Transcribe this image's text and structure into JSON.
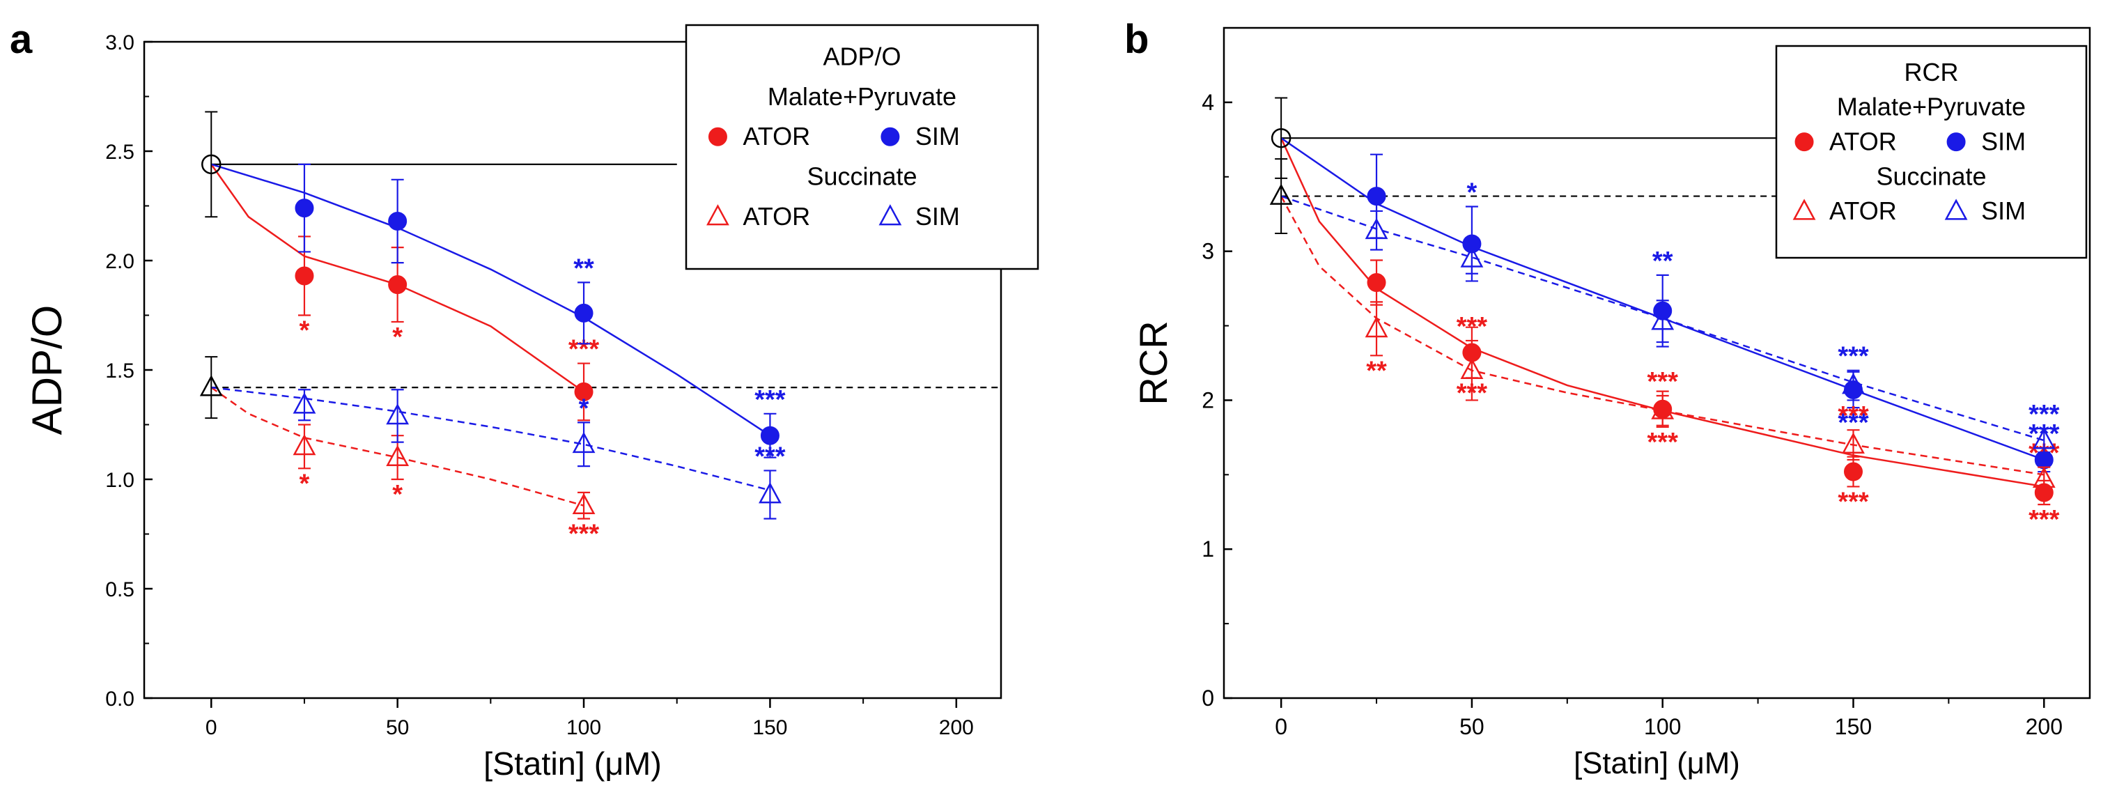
{
  "chart_data": [
    {
      "panel": "a",
      "type": "scatter",
      "ylabel": "ADP/O",
      "xlabel": "[Statin] (μM)",
      "xlim": [
        -18,
        212
      ],
      "ylim": [
        0,
        3.0
      ],
      "xticks": [
        0,
        50,
        100,
        150,
        200
      ],
      "xtick_labels": [
        "0",
        "50",
        "100",
        "150",
        "200"
      ],
      "yticks": [
        0,
        0.5,
        1.0,
        1.5,
        2.0,
        2.5,
        3.0
      ],
      "ytick_labels": [
        "0.0",
        "0.5",
        "1.0",
        "1.5",
        "2.0",
        "2.5",
        "3.0"
      ],
      "control": [
        {
          "name": "control-malate-pyruvate",
          "x": 0,
          "y": 2.44,
          "err": 0.24,
          "marker": "open-circle",
          "ref_line": "solid",
          "ref_to": 125
        },
        {
          "name": "control-succinate",
          "x": 0,
          "y": 1.42,
          "err": 0.14,
          "marker": "open-triangle",
          "ref_line": "dashed",
          "ref_to": 212
        }
      ],
      "series": [
        {
          "name": "ATOR",
          "substrate": "Malate+Pyruvate",
          "color": "#ee1c1c",
          "marker": "filled-circle",
          "line": "solid",
          "x": [
            25,
            50,
            100
          ],
          "y": [
            1.93,
            1.89,
            1.4
          ],
          "err": [
            0.18,
            0.17,
            0.13
          ],
          "sig": [
            "*",
            "*",
            "***"
          ],
          "sig_pos": [
            "below",
            "below",
            "above"
          ],
          "fit": [
            [
              0,
              2.44
            ],
            [
              10,
              2.2
            ],
            [
              25,
              2.02
            ],
            [
              50,
              1.89
            ],
            [
              75,
              1.7
            ],
            [
              100,
              1.4
            ]
          ]
        },
        {
          "name": "SIM",
          "substrate": "Malate+Pyruvate",
          "color": "#1a1ae6",
          "marker": "filled-circle",
          "line": "solid",
          "x": [
            25,
            50,
            100,
            150
          ],
          "y": [
            2.24,
            2.18,
            1.76,
            1.2
          ],
          "err": [
            0.2,
            0.19,
            0.14,
            0.1
          ],
          "sig": [
            "",
            "",
            "**",
            "***"
          ],
          "sig_pos": [
            "above",
            "above",
            "above",
            "above"
          ],
          "fit": [
            [
              0,
              2.44
            ],
            [
              25,
              2.31
            ],
            [
              50,
              2.15
            ],
            [
              75,
              1.96
            ],
            [
              100,
              1.74
            ],
            [
              125,
              1.48
            ],
            [
              150,
              1.2
            ]
          ]
        },
        {
          "name": "ATOR",
          "substrate": "Succinate",
          "color": "#ee1c1c",
          "marker": "open-triangle",
          "line": "dashed",
          "x": [
            25,
            50,
            100
          ],
          "y": [
            1.15,
            1.1,
            0.88
          ],
          "err": [
            0.1,
            0.1,
            0.06
          ],
          "sig": [
            "*",
            "*",
            "***"
          ],
          "sig_pos": [
            "below",
            "below",
            "below"
          ],
          "fit": [
            [
              0,
              1.42
            ],
            [
              10,
              1.3
            ],
            [
              25,
              1.19
            ],
            [
              50,
              1.1
            ],
            [
              75,
              1.0
            ],
            [
              100,
              0.88
            ]
          ]
        },
        {
          "name": "SIM",
          "substrate": "Succinate",
          "color": "#1a1ae6",
          "marker": "open-triangle",
          "line": "dashed",
          "x": [
            25,
            50,
            100,
            150
          ],
          "y": [
            1.34,
            1.29,
            1.16,
            0.93
          ],
          "err": [
            0.07,
            0.12,
            0.1,
            0.11
          ],
          "sig": [
            "",
            "",
            "*",
            "***"
          ],
          "sig_pos": [
            "above",
            "above",
            "above",
            "above"
          ],
          "fit": [
            [
              0,
              1.42
            ],
            [
              25,
              1.37
            ],
            [
              50,
              1.31
            ],
            [
              75,
              1.24
            ],
            [
              100,
              1.16
            ],
            [
              125,
              1.06
            ],
            [
              150,
              0.95
            ]
          ]
        }
      ],
      "legend": {
        "title": "ADP/O",
        "group1": "Malate+Pyruvate",
        "group2": "Succinate",
        "ator": "ATOR",
        "sim": "SIM",
        "placement": "top-right"
      }
    },
    {
      "panel": "b",
      "type": "scatter",
      "ylabel": "RCR",
      "xlabel": "[Statin] (μM)",
      "xlim": [
        -15,
        212
      ],
      "ylim": [
        0,
        4.5
      ],
      "xticks": [
        0,
        50,
        100,
        150,
        200
      ],
      "xtick_labels": [
        "0",
        "50",
        "100",
        "150",
        "200"
      ],
      "yticks": [
        0,
        1,
        2,
        3,
        4
      ],
      "ytick_labels": [
        "0",
        "1",
        "2",
        "3",
        "4"
      ],
      "control": [
        {
          "name": "control-malate-pyruvate",
          "x": 0,
          "y": 3.76,
          "err": 0.27,
          "marker": "open-circle",
          "ref_line": "solid",
          "ref_to": 130
        },
        {
          "name": "control-succinate",
          "x": 0,
          "y": 3.37,
          "err": 0.25,
          "marker": "open-triangle",
          "ref_line": "dashed",
          "ref_to": 130
        }
      ],
      "series": [
        {
          "name": "ATOR",
          "substrate": "Malate+Pyruvate",
          "color": "#ee1c1c",
          "marker": "filled-circle",
          "line": "solid",
          "x": [
            25,
            50,
            100,
            150,
            200
          ],
          "y": [
            2.79,
            2.32,
            1.94,
            1.52,
            1.38
          ],
          "err": [
            0.15,
            0.17,
            0.12,
            0.1,
            0.08
          ],
          "sig": [
            "",
            "***",
            "***",
            "***",
            "***"
          ],
          "sig_pos": [
            "below",
            "below",
            "below",
            "below",
            "below"
          ],
          "fit": [
            [
              0,
              3.76
            ],
            [
              10,
              3.2
            ],
            [
              25,
              2.75
            ],
            [
              50,
              2.35
            ],
            [
              75,
              2.1
            ],
            [
              100,
              1.93
            ],
            [
              150,
              1.63
            ],
            [
              200,
              1.42
            ]
          ]
        },
        {
          "name": "SIM",
          "substrate": "Malate+Pyruvate",
          "color": "#1a1ae6",
          "marker": "filled-circle",
          "line": "solid",
          "x": [
            25,
            50,
            100,
            150,
            200
          ],
          "y": [
            3.37,
            3.05,
            2.6,
            2.07,
            1.6
          ],
          "err": [
            0.28,
            0.25,
            0.24,
            0.12,
            0.08
          ],
          "sig": [
            "",
            "*",
            "**",
            "***",
            "***"
          ],
          "sig_pos": [
            "above",
            "above",
            "above",
            "below",
            "above"
          ],
          "fit": [
            [
              0,
              3.76
            ],
            [
              25,
              3.32
            ],
            [
              50,
              3.03
            ],
            [
              100,
              2.55
            ],
            [
              150,
              2.07
            ],
            [
              200,
              1.6
            ]
          ]
        },
        {
          "name": "ATOR",
          "substrate": "Succinate",
          "color": "#ee1c1c",
          "marker": "open-triangle",
          "line": "dashed",
          "x": [
            25,
            50,
            100,
            150,
            200
          ],
          "y": [
            2.48,
            2.2,
            1.93,
            1.7,
            1.47
          ],
          "err": [
            0.18,
            0.2,
            0.1,
            0.1,
            0.08
          ],
          "sig": [
            "**",
            "***",
            "***",
            "***",
            "***"
          ],
          "sig_pos": [
            "below",
            "above",
            "above",
            "above",
            "above"
          ],
          "fit": [
            [
              0,
              3.37
            ],
            [
              10,
              2.9
            ],
            [
              25,
              2.55
            ],
            [
              50,
              2.2
            ],
            [
              75,
              2.05
            ],
            [
              100,
              1.93
            ],
            [
              150,
              1.7
            ],
            [
              200,
              1.5
            ]
          ]
        },
        {
          "name": "SIM",
          "substrate": "Succinate",
          "color": "#1a1ae6",
          "marker": "open-triangle",
          "line": "dashed",
          "x": [
            25,
            50,
            100,
            150,
            200
          ],
          "y": [
            3.14,
            2.95,
            2.53,
            2.1,
            1.73
          ],
          "err": [
            0.13,
            0.1,
            0.14,
            0.1,
            0.08
          ],
          "sig": [
            "",
            "",
            "",
            "***",
            "***"
          ],
          "sig_pos": [
            "above",
            "above",
            "above",
            "above",
            "above"
          ],
          "fit": [
            [
              0,
              3.37
            ],
            [
              25,
              3.15
            ],
            [
              50,
              2.96
            ],
            [
              100,
              2.55
            ],
            [
              150,
              2.12
            ],
            [
              200,
              1.73
            ]
          ]
        }
      ],
      "legend": {
        "title": "RCR",
        "group1": "Malate+Pyruvate",
        "group2": "Succinate",
        "ator": "ATOR",
        "sim": "SIM",
        "placement": "top-right"
      }
    }
  ]
}
